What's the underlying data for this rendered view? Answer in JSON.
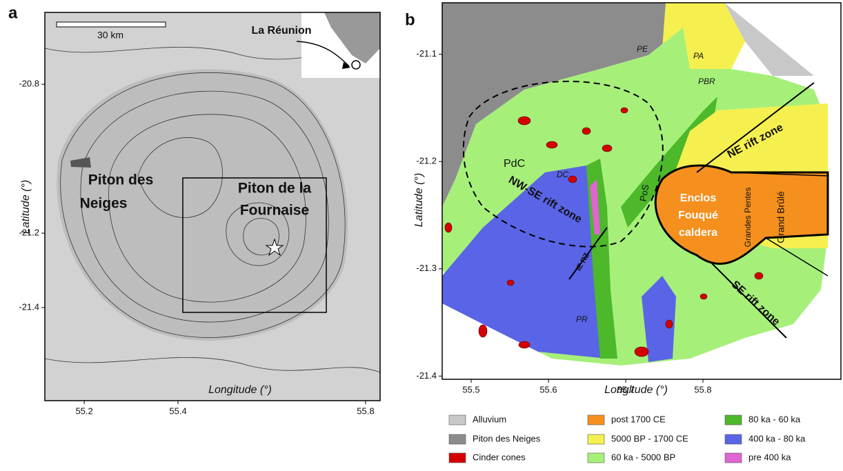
{
  "panels": [
    {
      "label": "a",
      "x_label": "Longitude (°)",
      "y_label": "Latitude (°)",
      "xlim": [
        55.116,
        55.831
      ],
      "ylim": [
        -21.65,
        -20.607
      ],
      "xticks": [
        55.2,
        55.4,
        55.8
      ],
      "yticks": [
        -20.8,
        -21.2,
        -21.4
      ],
      "annotations": [
        "30 km",
        "La Réunion",
        "Piton des",
        "Neiges",
        "Piton de la",
        "Fournaise"
      ]
    },
    {
      "label": "b",
      "x_label": "Longitude (°)",
      "y_label": "Latitude (°)",
      "xlim": [
        55.4625,
        55.9786
      ],
      "ylim": [
        -21.403,
        -21.052
      ],
      "xticks": [
        55.5,
        55.6,
        55.7,
        55.8
      ],
      "yticks": [
        -21.1,
        -21.2,
        -21.3,
        -21.4
      ],
      "annotations": [
        "PE",
        "PA",
        "PBR",
        "PdC",
        "DC",
        "PoS",
        "NE rift zone",
        "NW-SE rift zone",
        "IE RZ",
        "Enclos",
        "Fouqué",
        "caldera",
        "Grandes Pentes",
        "Grand Brûlé",
        "SE rift zone",
        "PR"
      ]
    }
  ],
  "legend": [
    {
      "name": "Alluvium",
      "color": "#c8c8c8"
    },
    {
      "name": "Piton des Neiges",
      "color": "#8c8c8c"
    },
    {
      "name": "Cinder cones",
      "color": "#d40000"
    },
    {
      "name": "post 1700 CE",
      "color": "#f5901e"
    },
    {
      "name": "5000 BP - 1700 CE",
      "color": "#f5f050"
    },
    {
      "name": "60 ka - 5000 BP",
      "color": "#a6f07a"
    },
    {
      "name": "80 ka - 60 ka",
      "color": "#4cb82a"
    },
    {
      "name": "400 ka - 80 ka",
      "color": "#5a64e6"
    },
    {
      "name": "pre 400 ka",
      "color": "#e064d2"
    }
  ]
}
